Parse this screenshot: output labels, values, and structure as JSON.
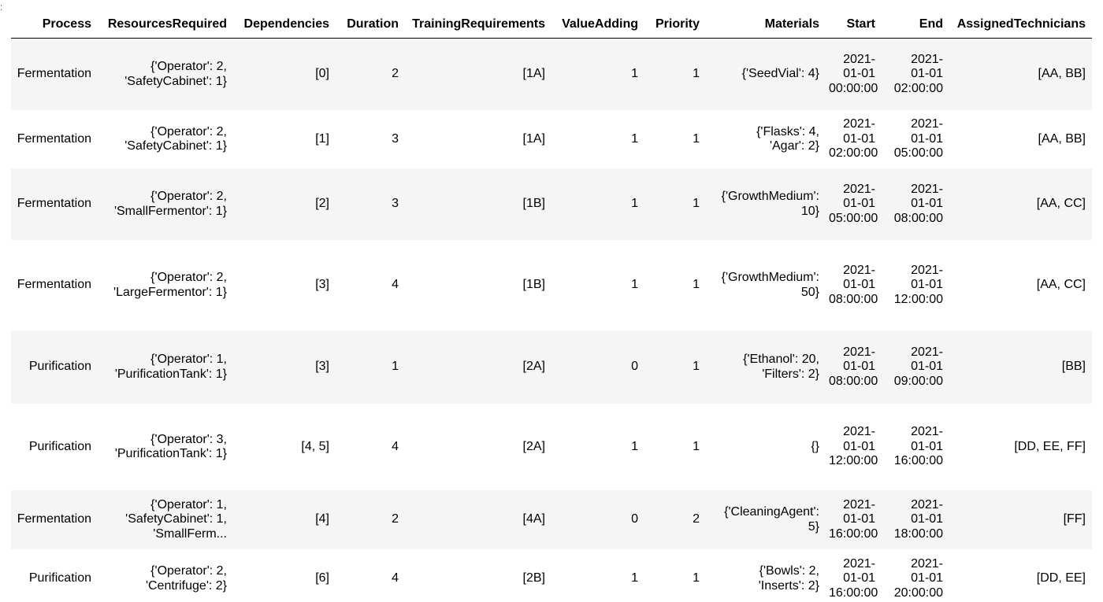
{
  "top_mark": ":",
  "columns": {
    "process": "Process",
    "resources": "ResourcesRequired",
    "dependencies": "Dependencies",
    "duration": "Duration",
    "training": "TrainingRequirements",
    "value_adding": "ValueAdding",
    "priority": "Priority",
    "materials": "Materials",
    "start": "Start",
    "end": "End",
    "technicians": "AssignedTechnicians"
  },
  "rows": [
    {
      "process": "Fermentation",
      "resources": "{'Operator': 2,\n'SafetyCabinet': 1}",
      "dependencies": "[0]",
      "duration": "2",
      "training": "[1A]",
      "value_adding": "1",
      "priority": "1",
      "materials": "{'SeedVial': 4}",
      "start": "2021-\n01-01\n00:00:00",
      "end": "2021-\n01-01\n02:00:00",
      "technicians": "[AA, BB]"
    },
    {
      "process": "Fermentation",
      "resources": "{'Operator': 2,\n'SafetyCabinet': 1}",
      "dependencies": "[1]",
      "duration": "3",
      "training": "[1A]",
      "value_adding": "1",
      "priority": "1",
      "materials": "{'Flasks': 4,\n'Agar': 2}",
      "start": "2021-\n01-01\n02:00:00",
      "end": "2021-\n01-01\n05:00:00",
      "technicians": "[AA, BB]"
    },
    {
      "process": "Fermentation",
      "resources": "{'Operator': 2,\n'SmallFermentor': 1}",
      "dependencies": "[2]",
      "duration": "3",
      "training": "[1B]",
      "value_adding": "1",
      "priority": "1",
      "materials": "{'GrowthMedium':\n10}",
      "start": "2021-\n01-01\n05:00:00",
      "end": "2021-\n01-01\n08:00:00",
      "technicians": "[AA, CC]"
    },
    {
      "process": "Fermentation",
      "resources": "{'Operator': 2,\n'LargeFermentor': 1}",
      "dependencies": "[3]",
      "duration": "4",
      "training": "[1B]",
      "value_adding": "1",
      "priority": "1",
      "materials": "{'GrowthMedium':\n50}",
      "start": "2021-\n01-01\n08:00:00",
      "end": "2021-\n01-01\n12:00:00",
      "technicians": "[AA, CC]"
    },
    {
      "process": "Purification",
      "resources": "{'Operator': 1,\n'PurificationTank': 1}",
      "dependencies": "[3]",
      "duration": "1",
      "training": "[2A]",
      "value_adding": "0",
      "priority": "1",
      "materials": "{'Ethanol': 20,\n'Filters': 2}",
      "start": "2021-\n01-01\n08:00:00",
      "end": "2021-\n01-01\n09:00:00",
      "technicians": "[BB]"
    },
    {
      "process": "Purification",
      "resources": "{'Operator': 3,\n'PurificationTank': 1}",
      "dependencies": "[4, 5]",
      "duration": "4",
      "training": "[2A]",
      "value_adding": "1",
      "priority": "1",
      "materials": "{}",
      "start": "2021-\n01-01\n12:00:00",
      "end": "2021-\n01-01\n16:00:00",
      "technicians": "[DD, EE, FF]"
    },
    {
      "process": "Fermentation",
      "resources": "{'Operator': 1,\n'SafetyCabinet': 1,\n'SmallFerm...",
      "dependencies": "[4]",
      "duration": "2",
      "training": "[4A]",
      "value_adding": "0",
      "priority": "2",
      "materials": "{'CleaningAgent':\n5}",
      "start": "2021-\n01-01\n16:00:00",
      "end": "2021-\n01-01\n18:00:00",
      "technicians": "[FF]"
    },
    {
      "process": "Purification",
      "resources": "{'Operator': 2,\n'Centrifuge': 2}",
      "dependencies": "[6]",
      "duration": "4",
      "training": "[2B]",
      "value_adding": "1",
      "priority": "1",
      "materials": "{'Bowls': 2,\n'Inserts': 2}",
      "start": "2021-\n01-01\n16:00:00",
      "end": "2021-\n01-01\n20:00:00",
      "technicians": "[DD, EE]"
    }
  ]
}
